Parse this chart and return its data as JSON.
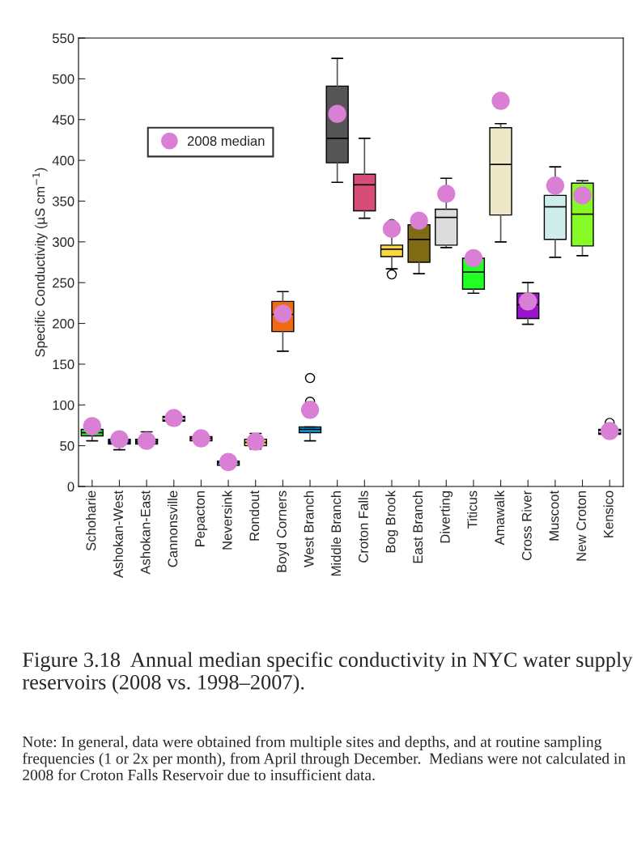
{
  "chart_data": {
    "type": "box",
    "categories": [
      "Schoharie",
      "Ashokan-West",
      "Ashokan-East",
      "Cannonsville",
      "Pepacton",
      "Neversink",
      "Rondout",
      "Boyd Corners",
      "West Branch",
      "Middle Branch",
      "Croton Falls",
      "Bog Brook",
      "East Branch",
      "Diverting",
      "Titicus",
      "Amawalk",
      "Cross River",
      "Muscoot",
      "New Croton",
      "Kensico"
    ],
    "colors": [
      "#22ee22",
      "#0a0a80",
      "#116622",
      "#000000",
      "#e04080",
      "#40c8e0",
      "#f0e010",
      "#f06a10",
      "#10a0e0",
      "#555558",
      "#d84c78",
      "#fcd840",
      "#806a14",
      "#dcdcdc",
      "#22ff22",
      "#efe8c8",
      "#9a14d0",
      "#ceeeec",
      "#86fa24",
      "#000000"
    ],
    "boxes": [
      {
        "low": 56,
        "q1": 62,
        "median": 66,
        "q3": 70,
        "high": 72
      },
      {
        "low": 45,
        "q1": 52,
        "median": 55,
        "q3": 58,
        "high": 63
      },
      {
        "low": 51,
        "q1": 52,
        "median": 55,
        "q3": 58,
        "high": 67
      },
      {
        "low": 76,
        "q1": 80,
        "median": 83,
        "q3": 86,
        "high": 89
      },
      {
        "low": 55,
        "q1": 56,
        "median": 59,
        "q3": 61,
        "high": 63
      },
      {
        "low": 26,
        "q1": 26,
        "median": 29,
        "q3": 31,
        "high": 31
      },
      {
        "low": 46,
        "q1": 50,
        "median": 54,
        "q3": 58,
        "high": 65
      },
      {
        "low": 166,
        "q1": 190,
        "median": 211,
        "q3": 227,
        "high": 239
      },
      {
        "low": 56,
        "q1": 66,
        "median": 70,
        "q3": 73,
        "high": 73,
        "outliers": [
          104,
          133
        ]
      },
      {
        "low": 373,
        "q1": 397,
        "median": 427,
        "q3": 491,
        "high": 525
      },
      {
        "low": 329,
        "q1": 338,
        "median": 370,
        "q3": 383,
        "high": 427
      },
      {
        "low": 267,
        "q1": 282,
        "median": 291,
        "q3": 296,
        "high": 320,
        "outliers": [
          260,
          322
        ]
      },
      {
        "low": 261,
        "q1": 275,
        "median": 303,
        "q3": 321,
        "high": 324
      },
      {
        "low": 293,
        "q1": 296,
        "median": 330,
        "q3": 340,
        "high": 378
      },
      {
        "low": 237,
        "q1": 242,
        "median": 263,
        "q3": 280,
        "high": 285
      },
      {
        "low": 300,
        "q1": 333,
        "median": 395,
        "q3": 440,
        "high": 445
      },
      {
        "low": 199,
        "q1": 206,
        "median": 223,
        "q3": 237,
        "high": 250
      },
      {
        "low": 281,
        "q1": 303,
        "median": 343,
        "q3": 357,
        "high": 392
      },
      {
        "low": 283,
        "q1": 295,
        "median": 334,
        "q3": 372,
        "high": 375
      },
      {
        "low": 61,
        "q1": 64,
        "median": 67,
        "q3": 70,
        "high": 72,
        "outliers": [
          78
        ]
      }
    ],
    "series": [
      {
        "type": "scatter",
        "name": "2008 median",
        "color": "#da80d4",
        "marker": "circle",
        "x": [
          "Schoharie",
          "Ashokan-West",
          "Ashokan-East",
          "Cannonsville",
          "Pepacton",
          "Neversink",
          "Rondout",
          "Boyd Corners",
          "West Branch",
          "Middle Branch",
          "Croton Falls",
          "Bog Brook",
          "East Branch",
          "Diverting",
          "Titicus",
          "Amawalk",
          "Cross River",
          "Muscoot",
          "New Croton",
          "Kensico"
        ],
        "values": [
          74,
          58,
          56,
          84,
          59,
          30,
          55,
          212,
          94,
          457,
          null,
          316,
          326,
          359,
          280,
          473,
          227,
          369,
          357,
          68
        ]
      }
    ],
    "ylabel": "Specific Conductivity (µS cm$^{−1}$)",
    "ylim": [
      0,
      550
    ],
    "yticks": [
      0,
      50,
      100,
      150,
      200,
      250,
      300,
      350,
      400,
      450,
      500,
      550
    ],
    "grid": false,
    "legend": "top left",
    "annotations": [
      "Figure 3.18  Annual median specific conductivity in NYC water supply reservoirs (2008 vs. 1998–2007).",
      "Note: In general, data were obtained from multiple sites and depths, and at routine sampling frequencies (1 or 2x per month), from April through December.  Medians were not calculated in 2008 for Croton Falls Reservoir due to insufficient data."
    ]
  }
}
